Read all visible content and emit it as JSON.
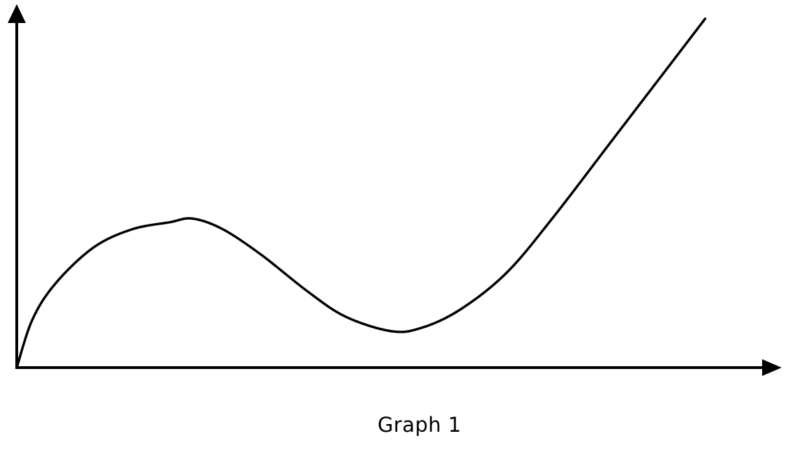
{
  "caption": "Graph 1",
  "colors": {
    "line": "#000000",
    "axis": "#000000",
    "background": "#ffffff"
  },
  "chart_data": {
    "type": "line",
    "title": "",
    "xlabel": "",
    "ylabel": "",
    "xlim": [
      0,
      10
    ],
    "ylim": [
      0,
      10
    ],
    "grid": false,
    "legend": "none",
    "ticks": "none",
    "series": [
      {
        "x": [
          0,
          0.2,
          0.5,
          1.0,
          1.5,
          2.0,
          2.3,
          2.7,
          3.2,
          3.8,
          4.3,
          4.9,
          5.3,
          5.8,
          6.4,
          7.0,
          7.8,
          8.6,
          9.0
        ],
        "y": [
          0,
          1.3,
          2.3,
          3.3,
          3.8,
          4.0,
          4.1,
          3.8,
          3.1,
          2.1,
          1.4,
          1.0,
          1.1,
          1.6,
          2.6,
          4.1,
          6.3,
          8.5,
          9.6
        ]
      }
    ]
  }
}
